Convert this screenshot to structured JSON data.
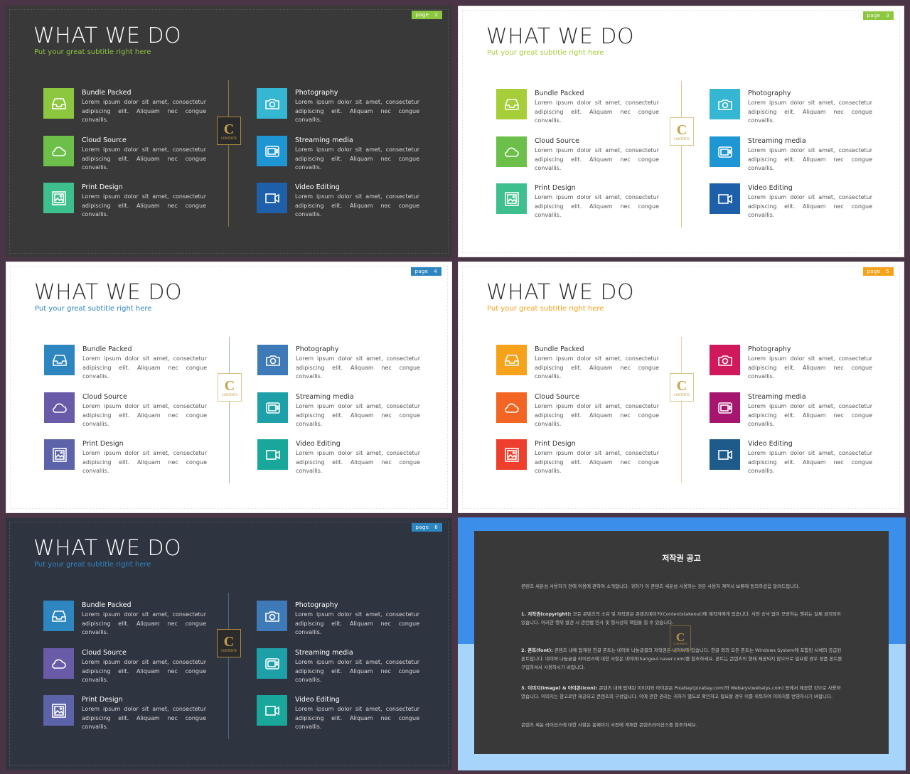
{
  "slides": [
    {
      "page_label": "page",
      "page_num": "2",
      "title": "WHAT WE DO",
      "subtitle": "Put your great subtitle right here",
      "tag_color": "#8dc63f",
      "subtitle_color": "#8dc63f",
      "line_color": "#8a7a3a",
      "theme": "dark"
    },
    {
      "page_label": "page",
      "page_num": "3",
      "title": "WHAT WE DO",
      "subtitle": "Put your great subtitle right here",
      "tag_color": "#8dc63f",
      "subtitle_color": "#a6ce39",
      "line_color": "#d9c48c",
      "theme": "light"
    },
    {
      "page_label": "page",
      "page_num": "4",
      "title": "WHAT WE DO",
      "subtitle": "Put your great subtitle right here",
      "tag_color": "#2e86c1",
      "subtitle_color": "#2e86c1",
      "line_color": "#9cb3c9",
      "theme": "light"
    },
    {
      "page_label": "page",
      "page_num": "5",
      "title": "WHAT WE DO",
      "subtitle": "Put your great subtitle right here",
      "tag_color": "#f7a21b",
      "subtitle_color": "#f7a21b",
      "line_color": "#e6d3a8",
      "theme": "light"
    },
    {
      "page_label": "page",
      "page_num": "6",
      "title": "WHAT WE DO",
      "subtitle": "Put your great subtitle right here",
      "tag_color": "#2e86c1",
      "subtitle_color": "#2e86c1",
      "line_color": "#4a6a8a",
      "theme": "navy"
    }
  ],
  "items": [
    {
      "title": "Bundle Packed",
      "icon": "inbox-icon",
      "desc": "Lorem ipsum dolor sit amet, consectetur adipiscing elit. Aliquam nec congue convallis."
    },
    {
      "title": "Cloud Source",
      "icon": "cloud-icon",
      "desc": "Lorem ipsum dolor sit amet, consectetur adipiscing elit. Aliquam nec congue convallis."
    },
    {
      "title": "Print Design",
      "icon": "picture-icon",
      "desc": "Lorem ipsum dolor sit amet, consectetur adipiscing elit. Aliquam nec congue convallis."
    },
    {
      "title": "Photography",
      "icon": "camera-icon",
      "desc": "Lorem ipsum dolor sit amet, consectetur adipiscing elit. Aliquam nec congue convallis."
    },
    {
      "title": "Streaming media",
      "icon": "tv-icon",
      "desc": "Lorem ipsum dolor sit amet, consectetur adipiscing elit. Aliquam nec congue convallis."
    },
    {
      "title": "Video Editing",
      "icon": "video-icon",
      "desc": "Lorem ipsum dolor sit amet, consectetur adipiscing elit. Aliquam nec congue convallis."
    }
  ],
  "palettes": [
    [
      "#8dc63f",
      "#6cc04a",
      "#3dbf8e",
      "#35b6d3",
      "#1e96d3",
      "#1d5fa8"
    ],
    [
      "#a6ce39",
      "#6cc04a",
      "#3dbf8e",
      "#35b6d3",
      "#1e96d3",
      "#1d5fa8"
    ],
    [
      "#2e86c1",
      "#6a5ba8",
      "#5c63a8",
      "#3e7ab8",
      "#1ea0a8",
      "#18a79a"
    ],
    [
      "#f7a21b",
      "#f26522",
      "#ee3f2c",
      "#d0195c",
      "#a6166e",
      "#1e5a8a"
    ],
    [
      "#2e86c1",
      "#6a5ba8",
      "#5c63a8",
      "#3e7ab8",
      "#1ea0a8",
      "#18a79a"
    ]
  ],
  "logo": {
    "letter": "C",
    "text": "CONTENTS"
  },
  "notice": {
    "title": "저작권 공고",
    "intro": "콘텐츠 세운섬 사용하기 전에 이용에 관하여 소개합니다. 귀하가 이 콘텐츠 세운섬 사용하는 것은 사용자 계약서 보류에 동의하셨음 알려드립니다.",
    "p1_head": "1. 저작권(copyright):",
    "p1": "모든 콘텐츠의 소유 및 저작권은 콘텐츠메이커(Contentstakeout)에 제작자에게 있습니다. 사전 승낙 없이 모방하는 행위는 일체 금지되어 있습니다. 이러한 행위 발견 시 관련법 민사 및 형사상의 책임을 질 수 있습니다.",
    "p2_head": "2. 폰트(font):",
    "p2": "콘텐츠 내에 탑재된 한글 폰트는 네이버 나눔글꼴의 저작권은 네이버에 있습니다. 한글 외의 모든 폰트는 Windows System에 포함된 서체의 공급된 폰트입니다. 네이버 나눔글꼴 라이선스에 대한 사항은 네이버(hangeul.naver.com)를 참조하세요. 폰트는 콘텐츠의 형태 제공되지 않으므로 필요할 경우 정품 폰트를 구입하셔서 사용하시기 바랍니다.",
    "p3_head": "3. 이미지(image) & 아이콘(icon):",
    "p3": "콘텐츠 내에 탑재된 이미지와 아이콘은 Pixabay(pixabay.com)와 Webalys(webalys.com) 등에서 제공한 것으로 사용하였습니다. 이미지는 참고로만 제공되고 콘텐츠의 구성입니다. 이에 관한 권리는 귀하가 별도로 확인하고 필요할 경우 이를 취득하여 이미지를 반영하시기 바랍니다.",
    "outro": "콘텐츠 세운 라이선스에 대한 사항은 홈페이지 사전에 게재한 콘텐츠라이선스를 참조하세요."
  }
}
